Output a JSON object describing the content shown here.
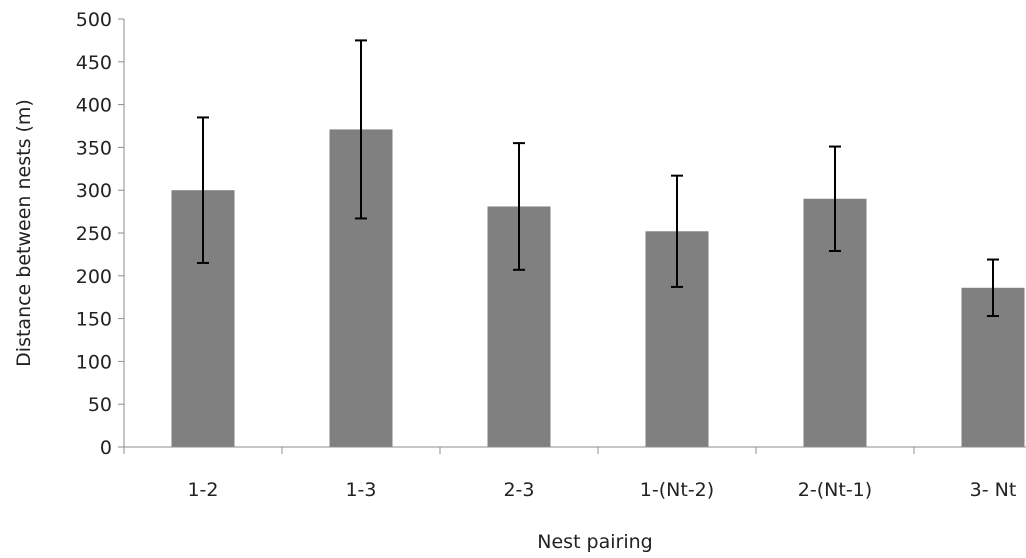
{
  "chart_data": {
    "type": "bar",
    "title": "",
    "xlabel": "Nest pairing",
    "ylabel": "Distance between nests (m)",
    "categories": [
      "1-2",
      "1-3",
      "2-3",
      "1-(Nt-2)",
      "2-(Nt-1)",
      "3- Nt"
    ],
    "values": [
      300,
      371,
      281,
      252,
      290,
      186
    ],
    "error": [
      85,
      104,
      74,
      65,
      61,
      33
    ],
    "ylim": [
      0,
      500
    ],
    "yticks": [
      0,
      50,
      100,
      150,
      200,
      250,
      300,
      350,
      400,
      450,
      500
    ],
    "grid": false,
    "legend": "none",
    "bar_color": "#808080",
    "errorbar_color": "#000000",
    "axis_color": "#8c8c8c"
  }
}
